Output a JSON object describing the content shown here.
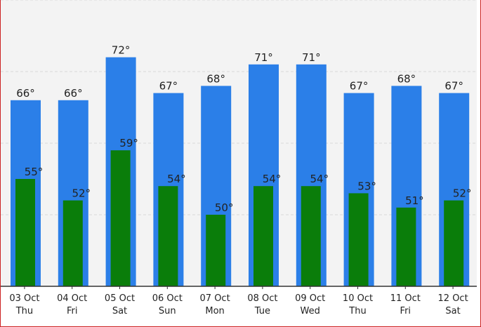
{
  "chart_data": {
    "type": "bar",
    "categories": [
      {
        "date": "03 Oct",
        "day": "Thu"
      },
      {
        "date": "04 Oct",
        "day": "Fri"
      },
      {
        "date": "05 Oct",
        "day": "Sat"
      },
      {
        "date": "06 Oct",
        "day": "Sun"
      },
      {
        "date": "07 Oct",
        "day": "Mon"
      },
      {
        "date": "08 Oct",
        "day": "Tue"
      },
      {
        "date": "09 Oct",
        "day": "Wed"
      },
      {
        "date": "10 Oct",
        "day": "Thu"
      },
      {
        "date": "11 Oct",
        "day": "Fri"
      },
      {
        "date": "12 Oct",
        "day": "Sat"
      }
    ],
    "series": [
      {
        "values": [
          66,
          66,
          72,
          67,
          68,
          71,
          71,
          67,
          68,
          67
        ],
        "labels": [
          "66°",
          "66°",
          "72°",
          "67°",
          "68°",
          "71°",
          "71°",
          "67°",
          "68°",
          "67°"
        ],
        "color": "#2b7fe8"
      },
      {
        "values": [
          55,
          52,
          59,
          54,
          50,
          54,
          54,
          53,
          51,
          52
        ],
        "labels": [
          "55°",
          "52°",
          "59°",
          "54°",
          "50°",
          "54°",
          "54°",
          "53°",
          "51°",
          "52°"
        ],
        "color": "#0a7d0a"
      }
    ],
    "ylim": [
      40,
      80
    ],
    "grid": true,
    "legend": "none",
    "plot_background": "#f3f3f3",
    "frame_color": "#cc2222"
  }
}
